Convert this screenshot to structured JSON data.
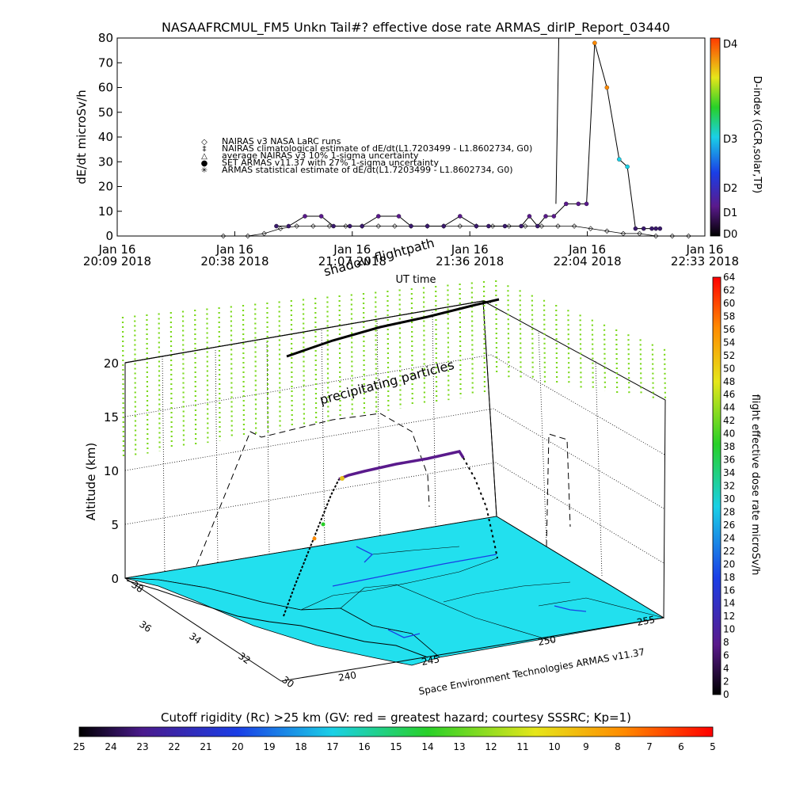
{
  "top": {
    "title": "NASAAFRCMUL_FM5 Unkn Tail#? effective dose rate ARMAS_dirIP_Report_03440",
    "ylabel": "dE/dt microSv/h",
    "xlabel": "UT time",
    "right_label": "D-index (GCR,solar,TP)",
    "yticks": [
      "0",
      "10",
      "20",
      "30",
      "40",
      "50",
      "60",
      "70",
      "80"
    ],
    "xticks": [
      {
        "l1": "Jan 16",
        "l2": "20:09 2018"
      },
      {
        "l1": "Jan 16",
        "l2": "20:38 2018"
      },
      {
        "l1": "Jan 16",
        "l2": "21:07 2018"
      },
      {
        "l1": "Jan 16",
        "l2": "21:36 2018"
      },
      {
        "l1": "Jan 16",
        "l2": "22:04 2018"
      },
      {
        "l1": "Jan 16",
        "l2": "22:33 2018"
      }
    ],
    "dticks": [
      "D4",
      "D3",
      "D2",
      "D1",
      "D0"
    ],
    "legend": [
      {
        "sym": "◇",
        "text": "NAIRAS v3 NASA LaRC runs"
      },
      {
        "sym": "‡",
        "text": "NAIRAS climatological estimate of dE/dt(L1.7203499 - L1.8602734, G0)"
      },
      {
        "sym": "△",
        "text": "average NAIRAS v3 10% 1-sigma uncertainty"
      },
      {
        "sym": "●",
        "text": "SET ARMAS v11.37 with 27% 1-sigma uncertainty"
      },
      {
        "sym": "✳",
        "text": "ARMAS statistical estimate of dE/dt(L1.7203499 - L1.8602734, G0)"
      }
    ]
  },
  "panel3d": {
    "shadow_label": "shadow flightpath",
    "precip_label": "precipitating particles",
    "zlabel": "Altitude (km)",
    "zticks": [
      "0",
      "5",
      "10",
      "15",
      "20"
    ],
    "lat_ticks": [
      "36",
      "34",
      "32",
      "30",
      "38"
    ],
    "lon_ticks": [
      "240",
      "245",
      "250",
      "255"
    ],
    "credit": "Space Environment Technologies ARMAS v11.37",
    "colorbar_label": "flight effective dose rate microSv/h",
    "colorbar_ticks": [
      "0",
      "2",
      "4",
      "6",
      "8",
      "10",
      "12",
      "14",
      "16",
      "18",
      "20",
      "22",
      "24",
      "26",
      "28",
      "30",
      "32",
      "34",
      "36",
      "38",
      "40",
      "42",
      "44",
      "46",
      "48",
      "50",
      "52",
      "54",
      "56",
      "58",
      "60",
      "62",
      "64"
    ]
  },
  "bottom": {
    "title": "Cutoff rigidity (Rc) >25 km (GV: red = greatest hazard; courtesy SSSRC; Kp=1)",
    "ticks": [
      "25",
      "24",
      "23",
      "22",
      "21",
      "20",
      "19",
      "18",
      "17",
      "16",
      "15",
      "14",
      "13",
      "12",
      "11",
      "10",
      "9",
      "8",
      "7",
      "6",
      "5"
    ]
  },
  "chart_data": {
    "type": "scatter",
    "title": "NASAAFRCMUL_FM5 Unkn Tail#? effective dose rate ARMAS_dirIP_Report_03440",
    "xlabel": "UT time",
    "ylabel": "dE/dt microSv/h",
    "ylim": [
      0,
      80
    ],
    "xlim_minutes_after_2009": [
      0,
      144
    ],
    "series": [
      {
        "name": "SET ARMAS v11.37 with 27% 1-sigma uncertainty",
        "x": [
          39,
          42,
          46,
          50,
          53,
          57,
          60,
          64,
          69,
          72,
          76,
          80,
          84,
          88,
          91,
          95,
          99,
          101,
          103,
          105,
          107,
          110,
          113,
          115,
          117,
          120,
          123,
          125,
          127,
          129,
          131,
          132,
          133
        ],
        "y": [
          4,
          4,
          8,
          8,
          4,
          4,
          4,
          8,
          8,
          4,
          4,
          4,
          8,
          4,
          4,
          4,
          4,
          8,
          4,
          8,
          8,
          13,
          13,
          13,
          78,
          60,
          31,
          28,
          3,
          3,
          3,
          3,
          3
        ]
      },
      {
        "name": "NAIRAS v3 NASA LaRC runs",
        "x": [
          26,
          32,
          36,
          40,
          44,
          48,
          52,
          56,
          60,
          64,
          68,
          72,
          76,
          80,
          84,
          88,
          92,
          96,
          100,
          104,
          108,
          112,
          116,
          120,
          124,
          128,
          132,
          136,
          140
        ],
        "y": [
          0,
          0,
          1,
          3,
          4,
          4,
          4,
          4,
          4,
          4,
          4,
          4,
          4,
          4,
          4,
          4,
          4,
          4,
          4,
          4,
          4,
          4,
          3,
          2,
          1,
          1,
          0,
          0,
          0
        ]
      }
    ]
  }
}
